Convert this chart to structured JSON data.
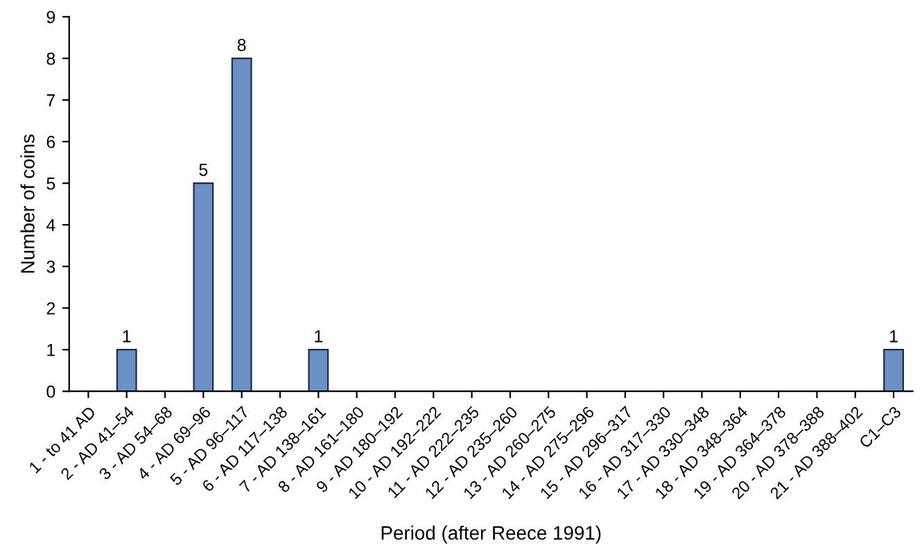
{
  "chart_data": {
    "type": "bar",
    "xlabel": "Period (after Reece 1991)",
    "ylabel": "Number of coins",
    "categories": [
      "1 - to 41 AD",
      "2 - AD 41–54",
      "3 - AD 54–68",
      "4 - AD 69–96",
      "5 - AD 96–117",
      "6 - AD 117–138",
      "7 - AD 138–161",
      "8 - AD 161–180",
      "9 - AD 180–192",
      "10 - AD 192–222",
      "11 - AD 222–235",
      "12 - AD 235–260",
      "13 - AD 260–275",
      "14 - AD 275–296",
      "15 - AD 296–317",
      "16 - AD 317–330",
      "17 - AD 330–348",
      "18 - AD 348–364",
      "19 - AD 364–378",
      "20 - AD 378–388",
      "21 - AD 388–402",
      "C1–C3"
    ],
    "values": [
      0,
      1,
      0,
      5,
      8,
      0,
      1,
      0,
      0,
      0,
      0,
      0,
      0,
      0,
      0,
      0,
      0,
      0,
      0,
      0,
      0,
      1
    ],
    "value_labels": [
      null,
      "1",
      null,
      "5",
      "8",
      null,
      "1",
      null,
      null,
      null,
      null,
      null,
      null,
      null,
      null,
      null,
      null,
      null,
      null,
      null,
      null,
      "1"
    ],
    "color": "#6b8fc4",
    "ylim": [
      0,
      9
    ],
    "yticks": [
      0,
      1,
      2,
      3,
      4,
      5,
      6,
      7,
      8,
      9
    ],
    "grid": false,
    "legend": false
  }
}
